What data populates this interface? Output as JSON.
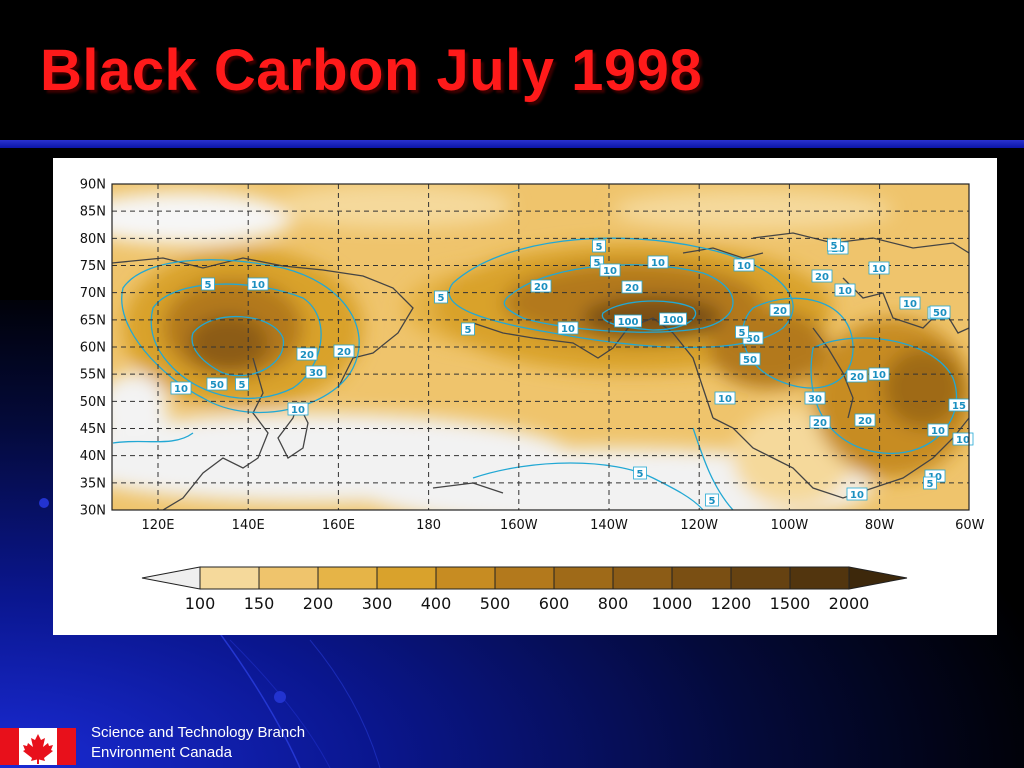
{
  "slide": {
    "title": "Black Carbon July 1998"
  },
  "map": {
    "lat_labels": [
      "90N",
      "85N",
      "80N",
      "75N",
      "70N",
      "65N",
      "60N",
      "55N",
      "50N",
      "45N",
      "40N",
      "35N",
      "30N"
    ],
    "lon_labels": [
      "120E",
      "140E",
      "160E",
      "180",
      "160W",
      "140W",
      "120W",
      "100W",
      "80W",
      "60W"
    ],
    "contour_labels": [
      "5",
      "10",
      "20",
      "5",
      "5",
      "5",
      "5",
      "10",
      "10",
      "20",
      "10",
      "100",
      "100",
      "50",
      "5",
      "50",
      "20",
      "20",
      "10",
      "10",
      "10",
      "20",
      "10",
      "20",
      "10",
      "50",
      "5",
      "30",
      "10",
      "10",
      "5",
      "20",
      "50",
      "20",
      "10",
      "20",
      "10",
      "30",
      "20",
      "10",
      "15",
      "10",
      "10",
      "5",
      "5",
      "10",
      "5"
    ],
    "colorbar": {
      "labels": [
        "100",
        "150",
        "200",
        "300",
        "400",
        "500",
        "600",
        "800",
        "1000",
        "1200",
        "1500",
        "2000"
      ],
      "colors": [
        "#efefef",
        "#f5d99b",
        "#efc46c",
        "#e6b447",
        "#d9a22c",
        "#c78c22",
        "#b3791c",
        "#9f6a18",
        "#8c5c16",
        "#7a4f13",
        "#664211",
        "#52350e",
        "#3d280b"
      ]
    },
    "contour_color": "#22a8d4",
    "coast_color": "#444444"
  },
  "footer": {
    "line1": "Science and Technology Branch",
    "line2": "Environment Canada"
  }
}
